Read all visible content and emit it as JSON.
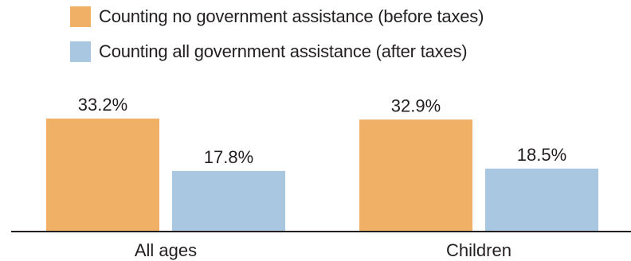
{
  "chart_data": {
    "type": "bar",
    "categories": [
      "All ages",
      "Children"
    ],
    "series": [
      {
        "name": "Counting no government assistance (before taxes)",
        "color": "#f0b065",
        "values": [
          33.2,
          32.9
        ],
        "labels": [
          "33.2%",
          "32.9%"
        ]
      },
      {
        "name": "Counting all government assistance (after taxes)",
        "color": "#a9c7e0",
        "values": [
          17.8,
          18.5
        ],
        "labels": [
          "17.8%",
          "18.5%"
        ]
      }
    ],
    "title": "",
    "xlabel": "",
    "ylabel": "",
    "ylim": [
      0,
      33.2
    ],
    "grid": false,
    "legend_position": "top-left"
  }
}
